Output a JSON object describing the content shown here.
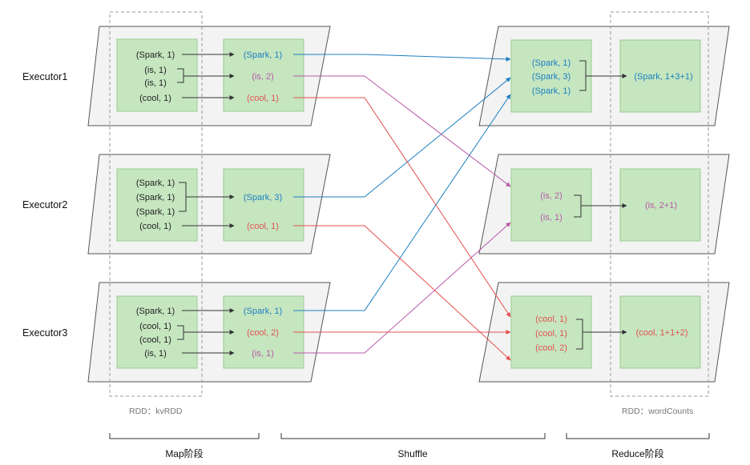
{
  "colors": {
    "spark": "#1b7fc1",
    "is": "#b85aa8",
    "cool": "#e2514f",
    "dark": "#333333",
    "box_fill": "#c6e6c0",
    "box_stroke": "#9acc90",
    "para_fill": "#f3f3f3",
    "para_stroke": "#555555"
  },
  "executors": [
    {
      "label": "Executor1",
      "map_items": [
        "(Spark, 1)",
        "(is, 1)",
        "(is, 1)",
        "(cool, 1)"
      ],
      "mid_items": [
        "(Spark, 1)",
        "(is, 2)",
        "(cool, 1)"
      ]
    },
    {
      "label": "Executor2",
      "map_items": [
        "(Spark, 1)",
        "(Spark, 1)",
        "(Spark, 1)",
        "(cool, 1)"
      ],
      "mid_items": [
        "(Spark, 3)",
        "(cool, 1)"
      ]
    },
    {
      "label": "Executor3",
      "map_items": [
        "(Spark, 1)",
        "(cool, 1)",
        "(cool, 1)",
        "(is, 1)"
      ],
      "mid_items": [
        "(Spark, 1)",
        "(cool, 2)",
        "(is, 1)"
      ]
    }
  ],
  "reducers": [
    {
      "items": [
        "(Spark, 1)",
        "(Spark, 3)",
        "(Spark, 1)"
      ],
      "result": "(Spark, 1+3+1)"
    },
    {
      "items": [
        "(is, 2)",
        "(is, 1)"
      ],
      "result": "(is, 2+1)"
    },
    {
      "items": [
        "(cool, 1)",
        "(cool, 1)",
        "(cool, 2)"
      ],
      "result": "(cool, 1+1+2)"
    }
  ],
  "rdd_labels": {
    "left": "RDD：kvRDD",
    "right": "RDD：wordCounts"
  },
  "stages": {
    "map": "Map阶段",
    "shuffle": "Shuffle",
    "reduce": "Reduce阶段"
  }
}
